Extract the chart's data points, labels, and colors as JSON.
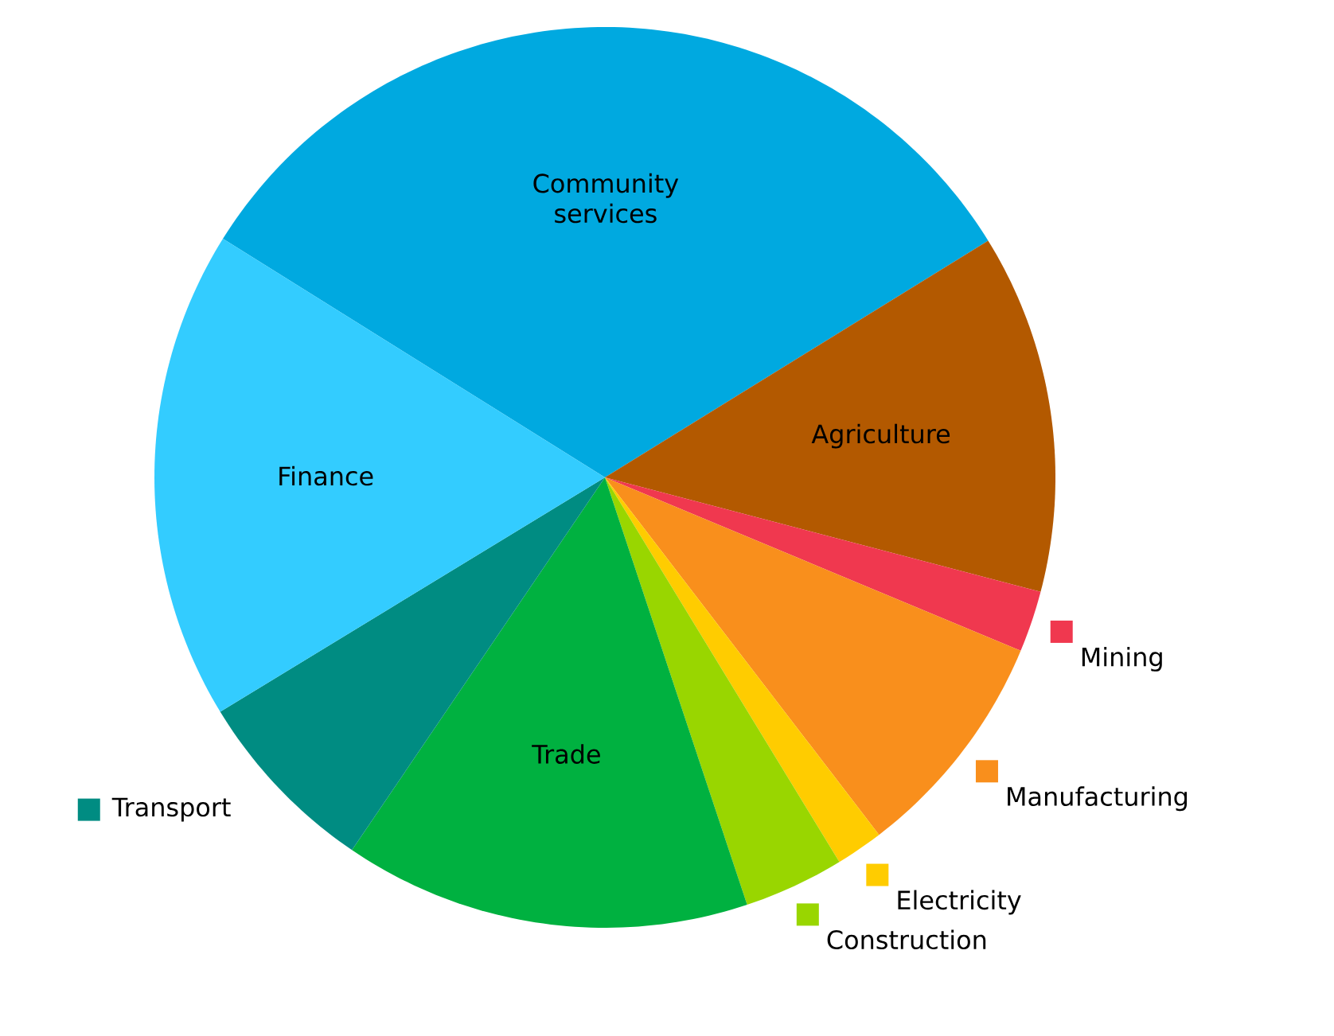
{
  "chart_data": {
    "type": "pie",
    "categories": [
      "Community services",
      "Agriculture",
      "Mining",
      "Manufacturing",
      "Electricity",
      "Construction",
      "Trade",
      "Transport",
      "Finance"
    ],
    "values": [
      32.3,
      12.9,
      2.2,
      8.3,
      1.7,
      3.6,
      14.6,
      6.8,
      17.6
    ],
    "colors": [
      "#00a9e0",
      "#b35900",
      "#f0384f",
      "#f98f1c",
      "#ffcc00",
      "#99d600",
      "#00b140",
      "#008c82",
      "#33ccff"
    ],
    "legend": "right"
  }
}
